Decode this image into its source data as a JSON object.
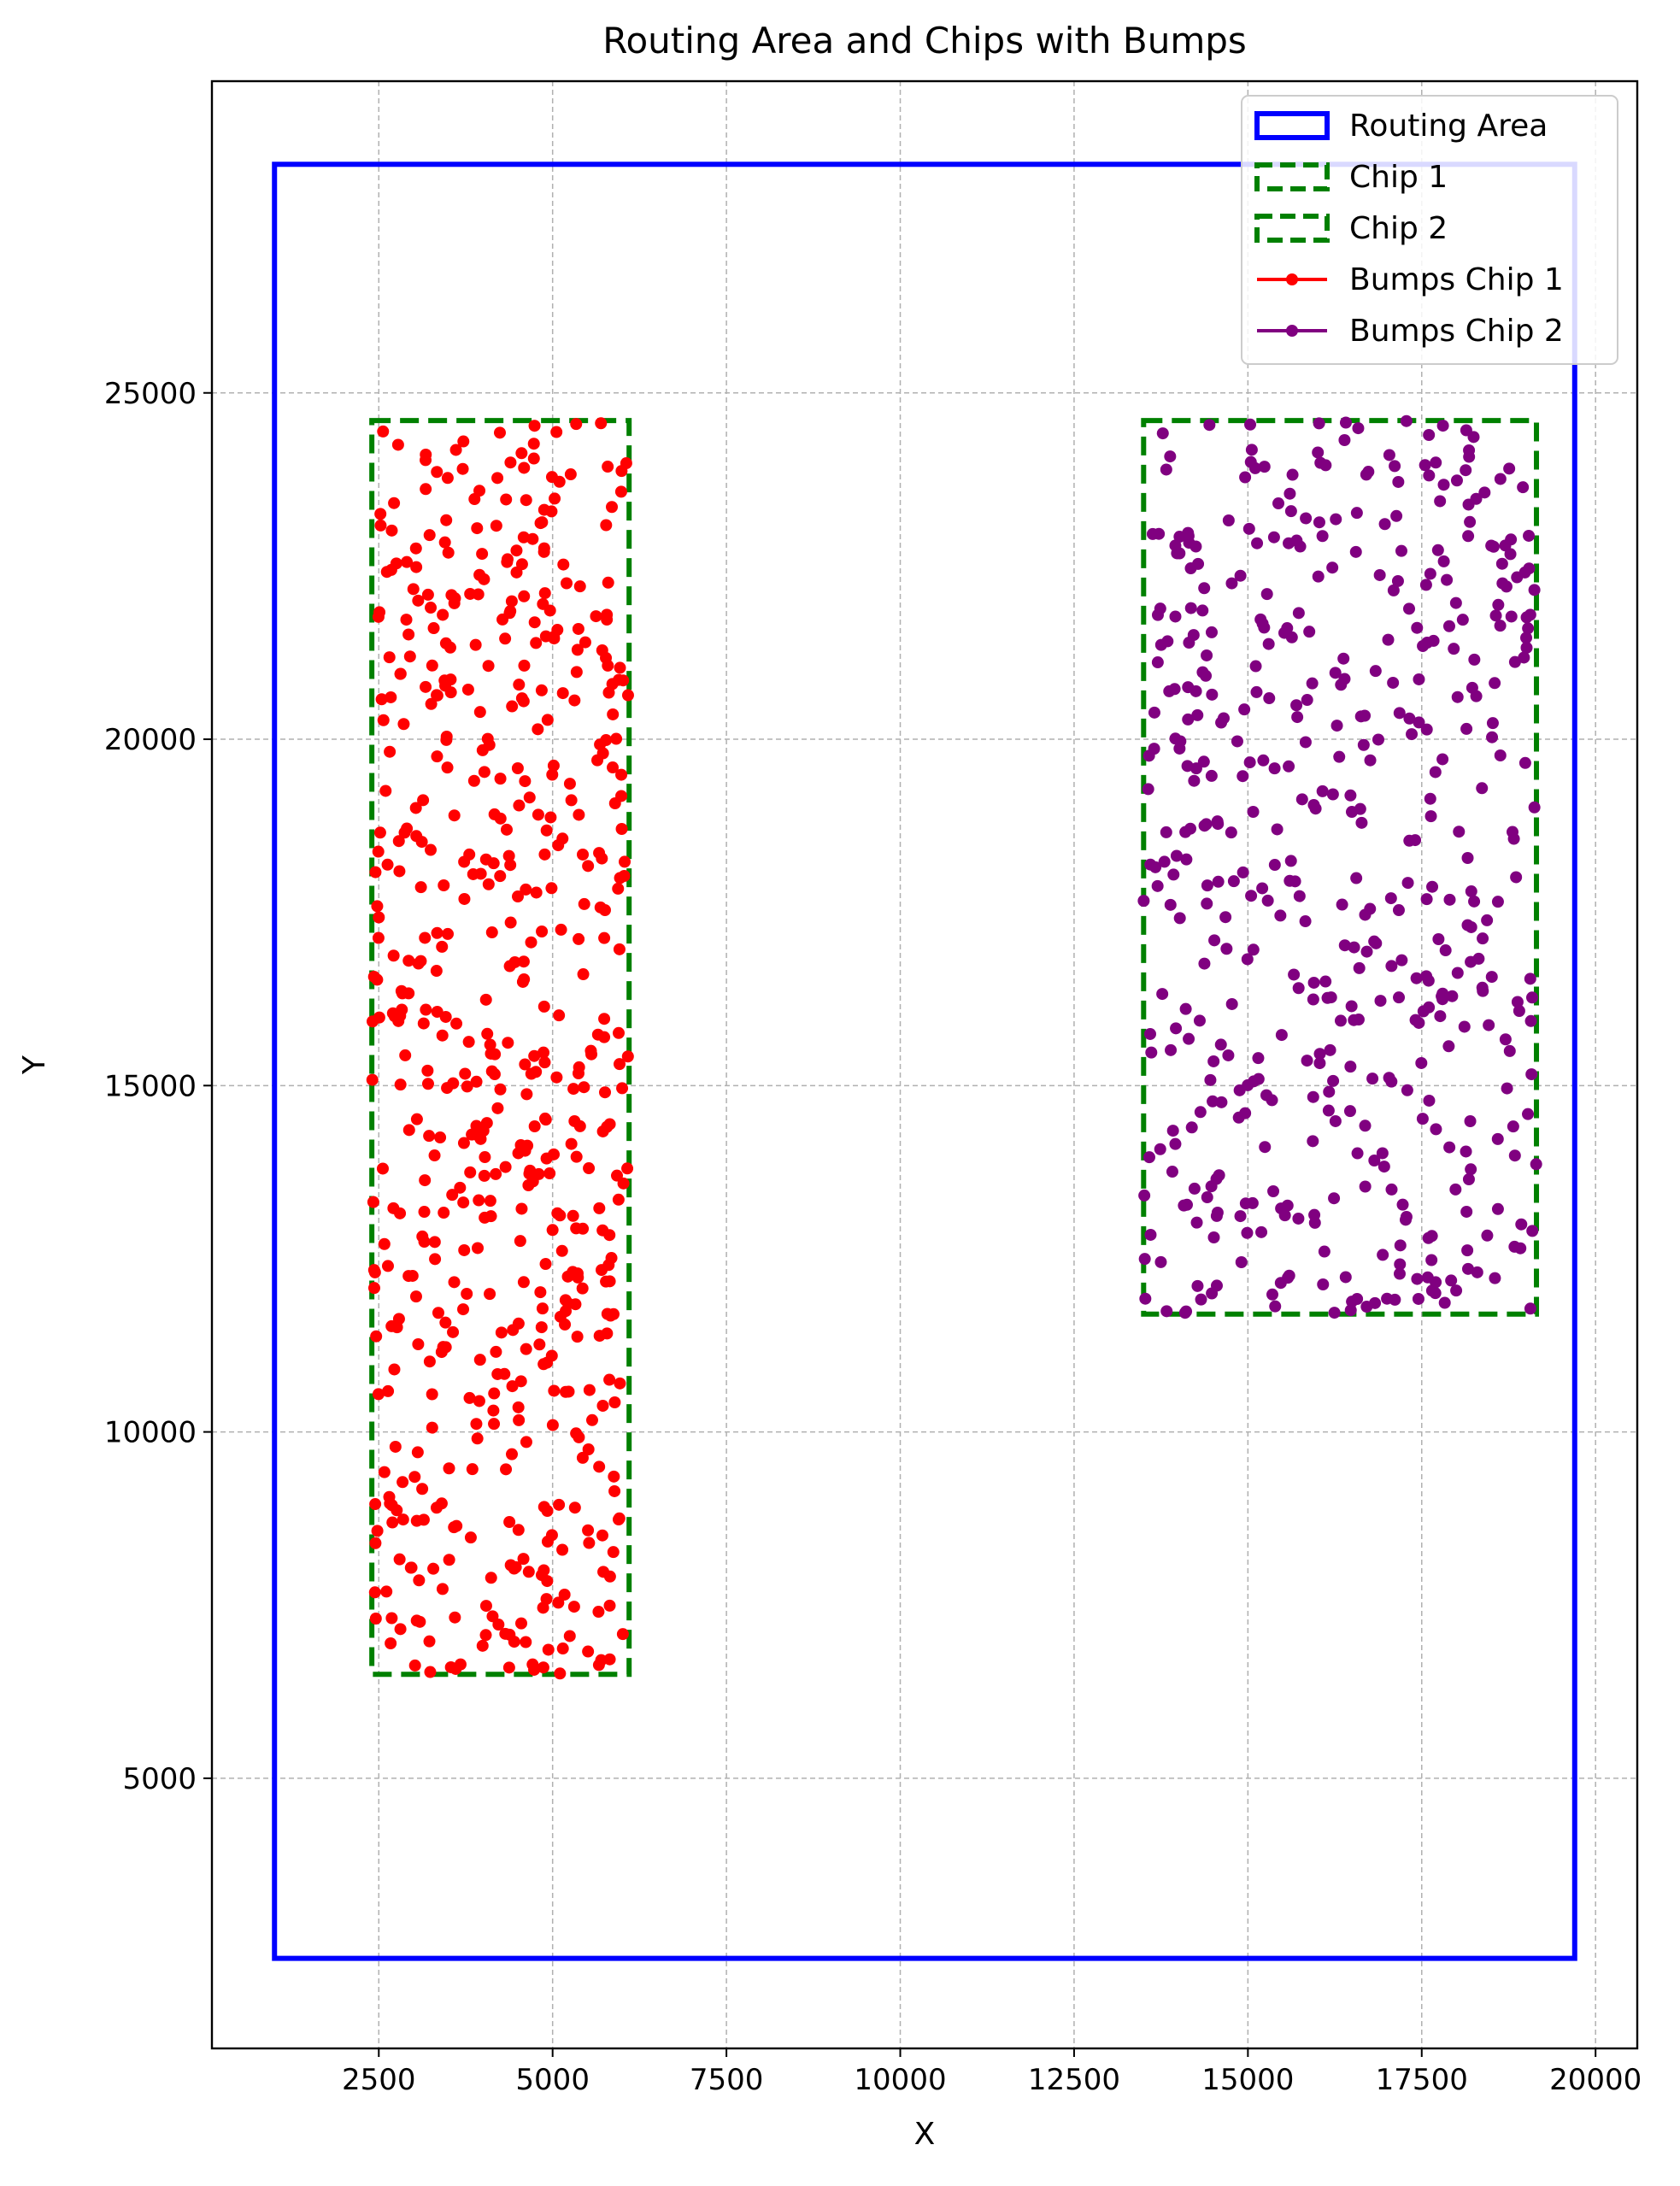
{
  "chart_data": {
    "type": "scatter",
    "title": "Routing Area and Chips with Bumps",
    "xlabel": "X",
    "ylabel": "Y",
    "xlim": [
      100,
      20600
    ],
    "ylim": [
      1100,
      29500
    ],
    "xticks": [
      2500,
      5000,
      7500,
      10000,
      12500,
      15000,
      17500,
      20000
    ],
    "yticks": [
      5000,
      10000,
      15000,
      20000,
      25000
    ],
    "grid": true,
    "legend": "top-right",
    "rectangles": [
      {
        "name": "Routing Area",
        "x0": 1000,
        "y0": 2400,
        "x1": 19700,
        "y1": 28300,
        "color": "#0000ff",
        "style": "solid"
      },
      {
        "name": "Chip 1",
        "x0": 2400,
        "y0": 6500,
        "x1": 6100,
        "y1": 24600,
        "color": "#008000",
        "style": "dashed"
      },
      {
        "name": "Chip 2",
        "x0": 13500,
        "y0": 11700,
        "x1": 19150,
        "y1": 24600,
        "color": "#008000",
        "style": "dashed"
      }
    ],
    "series": [
      {
        "name": "Bumps Chip 1",
        "color": "#ff0000",
        "count": 600,
        "x_range": [
          2400,
          6100
        ],
        "y_range": [
          6500,
          24600
        ]
      },
      {
        "name": "Bumps Chip 2",
        "color": "#800080",
        "count": 500,
        "x_range": [
          13500,
          19150
        ],
        "y_range": [
          11700,
          24600
        ]
      }
    ]
  }
}
